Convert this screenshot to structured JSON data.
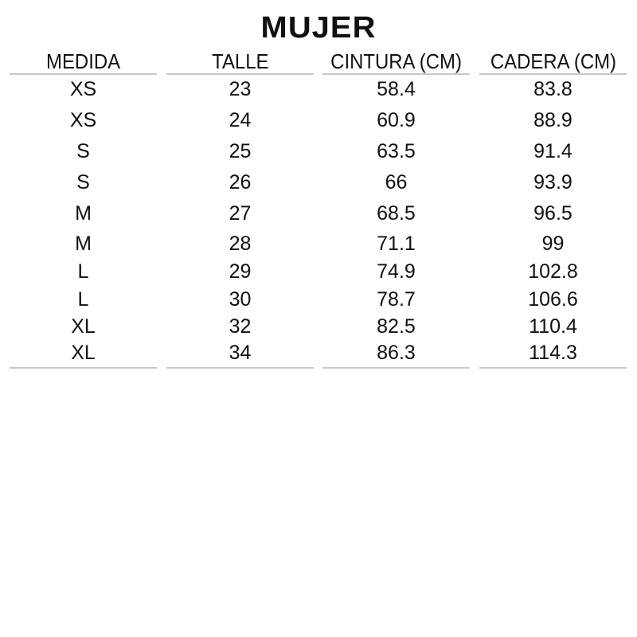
{
  "title": "MUJER",
  "table": {
    "headers": [
      "MEDIDA",
      "TALLE",
      "CINTURA (CM)",
      "CADERA (CM)"
    ],
    "rows": [
      [
        "XS",
        "23",
        "58.4",
        "83.8"
      ],
      [
        "XS",
        "24",
        "60.9",
        "88.9"
      ],
      [
        "S",
        "25",
        "63.5",
        "91.4"
      ],
      [
        "S",
        "26",
        "66",
        "93.9"
      ],
      [
        "M",
        "27",
        "68.5",
        "96.5"
      ],
      [
        "M",
        "28",
        "71.1",
        "99"
      ],
      [
        "L",
        "29",
        "74.9",
        "102.8"
      ],
      [
        "L",
        "30",
        "78.7",
        "106.6"
      ],
      [
        "XL",
        "32",
        "82.5",
        "110.4"
      ],
      [
        "XL",
        "34",
        "86.3",
        "114.3"
      ]
    ]
  }
}
